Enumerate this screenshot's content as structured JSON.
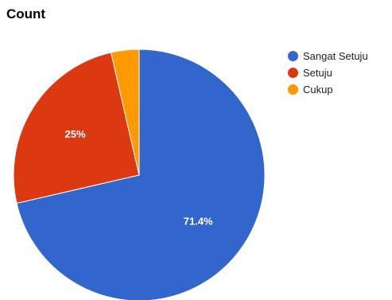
{
  "chart_data": {
    "type": "pie",
    "title": "Count",
    "categories": [
      "Sangat Setuju",
      "Setuju",
      "Cukup"
    ],
    "values": [
      71.4,
      25,
      3.6
    ],
    "data_labels": [
      "71.4%",
      "25%",
      ""
    ],
    "colors": [
      "#3366cc",
      "#dc3912",
      "#ff9900"
    ],
    "legend": "right",
    "start_angle_deg": 0,
    "direction": "clockwise"
  }
}
